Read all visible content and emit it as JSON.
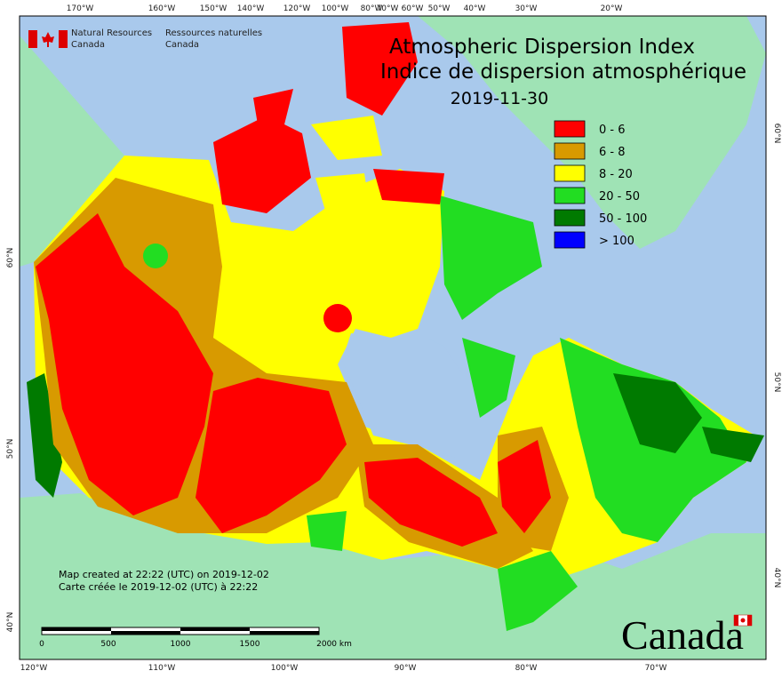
{
  "header": {
    "agency_en": "Natural Resources",
    "agency_en_2": "Canada",
    "agency_fr": "Ressources naturelles",
    "agency_fr_2": "Canada"
  },
  "title": {
    "line1": "Atmospheric Dispersion Index",
    "line2": "Indice de dispersion atmosphérique",
    "date": "2019-11-30"
  },
  "legend": [
    {
      "label": "0 - 6",
      "color": "#ff0000"
    },
    {
      "label": "6 - 8",
      "color": "#d89a00"
    },
    {
      "label": "8 - 20",
      "color": "#ffff00"
    },
    {
      "label": "20 - 50",
      "color": "#22dd22"
    },
    {
      "label": "50 - 100",
      "color": "#007a00"
    },
    {
      "label": "> 100",
      "color": "#0000ff"
    }
  ],
  "graticule": {
    "top": [
      "170°W",
      "160°W",
      "150°W",
      "140°W",
      "120°W",
      "100°W",
      "80°W",
      "70°W",
      "60°W",
      "50°W",
      "40°W",
      "30°W",
      "20°W"
    ],
    "bottom": [
      "120°W",
      "110°W",
      "100°W",
      "90°W",
      "80°W",
      "70°W"
    ],
    "left": [
      "60°N",
      "50°N",
      "40°N"
    ],
    "right": [
      "60°N",
      "50°N",
      "40°N"
    ]
  },
  "footer": {
    "created_en": "Map created at 22:22 (UTC) on 2019-12-02",
    "created_fr": "Carte créée le 2019-12-02 (UTC) à 22:22"
  },
  "scale": {
    "labels": [
      "0",
      "500",
      "1000",
      "1500",
      "2000 km"
    ]
  },
  "wordmark": "Canada"
}
